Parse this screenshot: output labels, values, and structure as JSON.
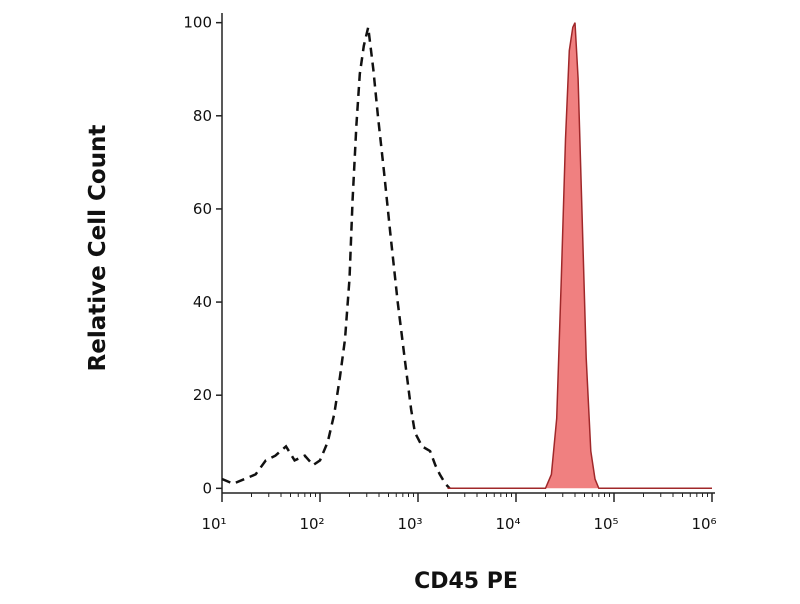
{
  "chart_data": {
    "type": "histogram-overlay",
    "xlabel": "CD45 PE",
    "ylabel": "Relative Cell Count",
    "xscale": "log",
    "xlim": [
      10,
      1000000
    ],
    "xticks": [
      {
        "value": 10,
        "label": "10¹"
      },
      {
        "value": 100,
        "label": "10²"
      },
      {
        "value": 1000,
        "label": "10³"
      },
      {
        "value": 10000,
        "label": "10⁴"
      },
      {
        "value": 100000,
        "label": "10⁵"
      },
      {
        "value": 1000000,
        "label": "10⁶"
      }
    ],
    "ylim": [
      -1,
      101
    ],
    "yticks": [
      0,
      20,
      40,
      60,
      80,
      100
    ],
    "series": [
      {
        "color": "#111111",
        "style": "dashed",
        "filled": false,
        "x": [
          10,
          13,
          17,
          22,
          28,
          35,
          45,
          55,
          70,
          85,
          100,
          120,
          140,
          160,
          180,
          200,
          215,
          235,
          255,
          280,
          310,
          350,
          390,
          450,
          520,
          620,
          740,
          850,
          930,
          1100,
          1330,
          1500,
          1670,
          1900,
          2100
        ],
        "values": [
          2,
          1,
          2,
          3,
          6,
          7,
          9,
          6,
          7,
          5,
          6,
          10,
          16,
          24,
          32,
          45,
          62,
          78,
          89,
          95,
          99,
          90,
          80,
          68,
          55,
          40,
          27,
          17,
          12,
          9,
          8,
          5,
          3,
          1,
          0
        ]
      },
      {
        "color": "#f08080",
        "edge": "#a0282a",
        "style": "solid",
        "filled": true,
        "x": [
          2000,
          10000,
          18000,
          20000,
          23000,
          26000,
          29000,
          32000,
          35000,
          38000,
          40000,
          43000,
          47000,
          52000,
          58000,
          64000,
          70000,
          100000,
          1000000
        ],
        "values": [
          0,
          0,
          0,
          0,
          3,
          15,
          45,
          75,
          94,
          99,
          100,
          88,
          60,
          28,
          8,
          2,
          0,
          0,
          0
        ]
      }
    ]
  }
}
